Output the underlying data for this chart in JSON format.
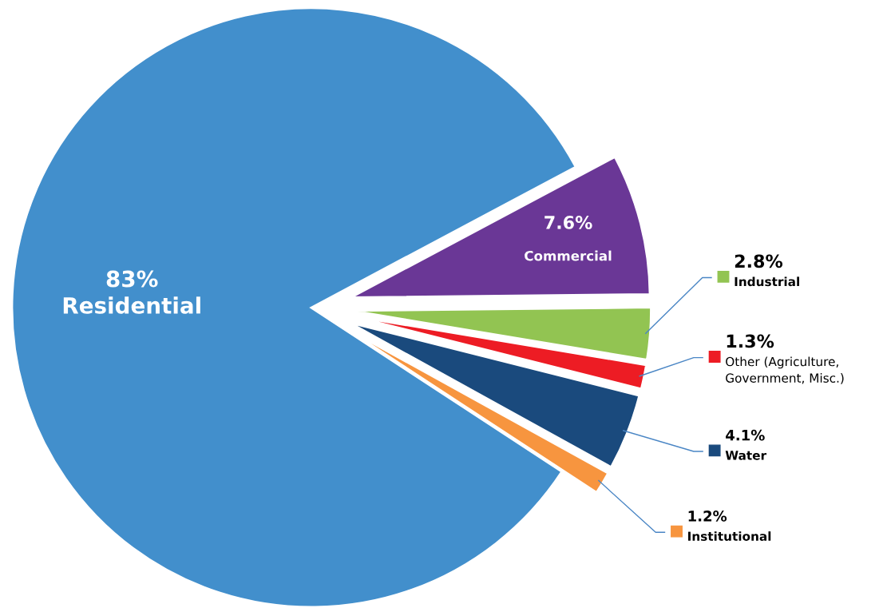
{
  "chart_data": {
    "type": "pie",
    "categories": [
      "Commercial",
      "Industrial",
      "Other (Agriculture, Government, Misc.)",
      "Water",
      "Institutional",
      "Residential"
    ],
    "values": [
      7.6,
      2.8,
      1.3,
      4.1,
      1.2,
      83
    ],
    "colors": [
      "#6a3796",
      "#92c452",
      "#ed1c24",
      "#1a4a7d",
      "#f7953f",
      "#428fcc"
    ],
    "value_labels": [
      "7.6%",
      "2.8%",
      "1.3%",
      "4.1%",
      "1.2%",
      "83%"
    ],
    "legend": "right"
  }
}
